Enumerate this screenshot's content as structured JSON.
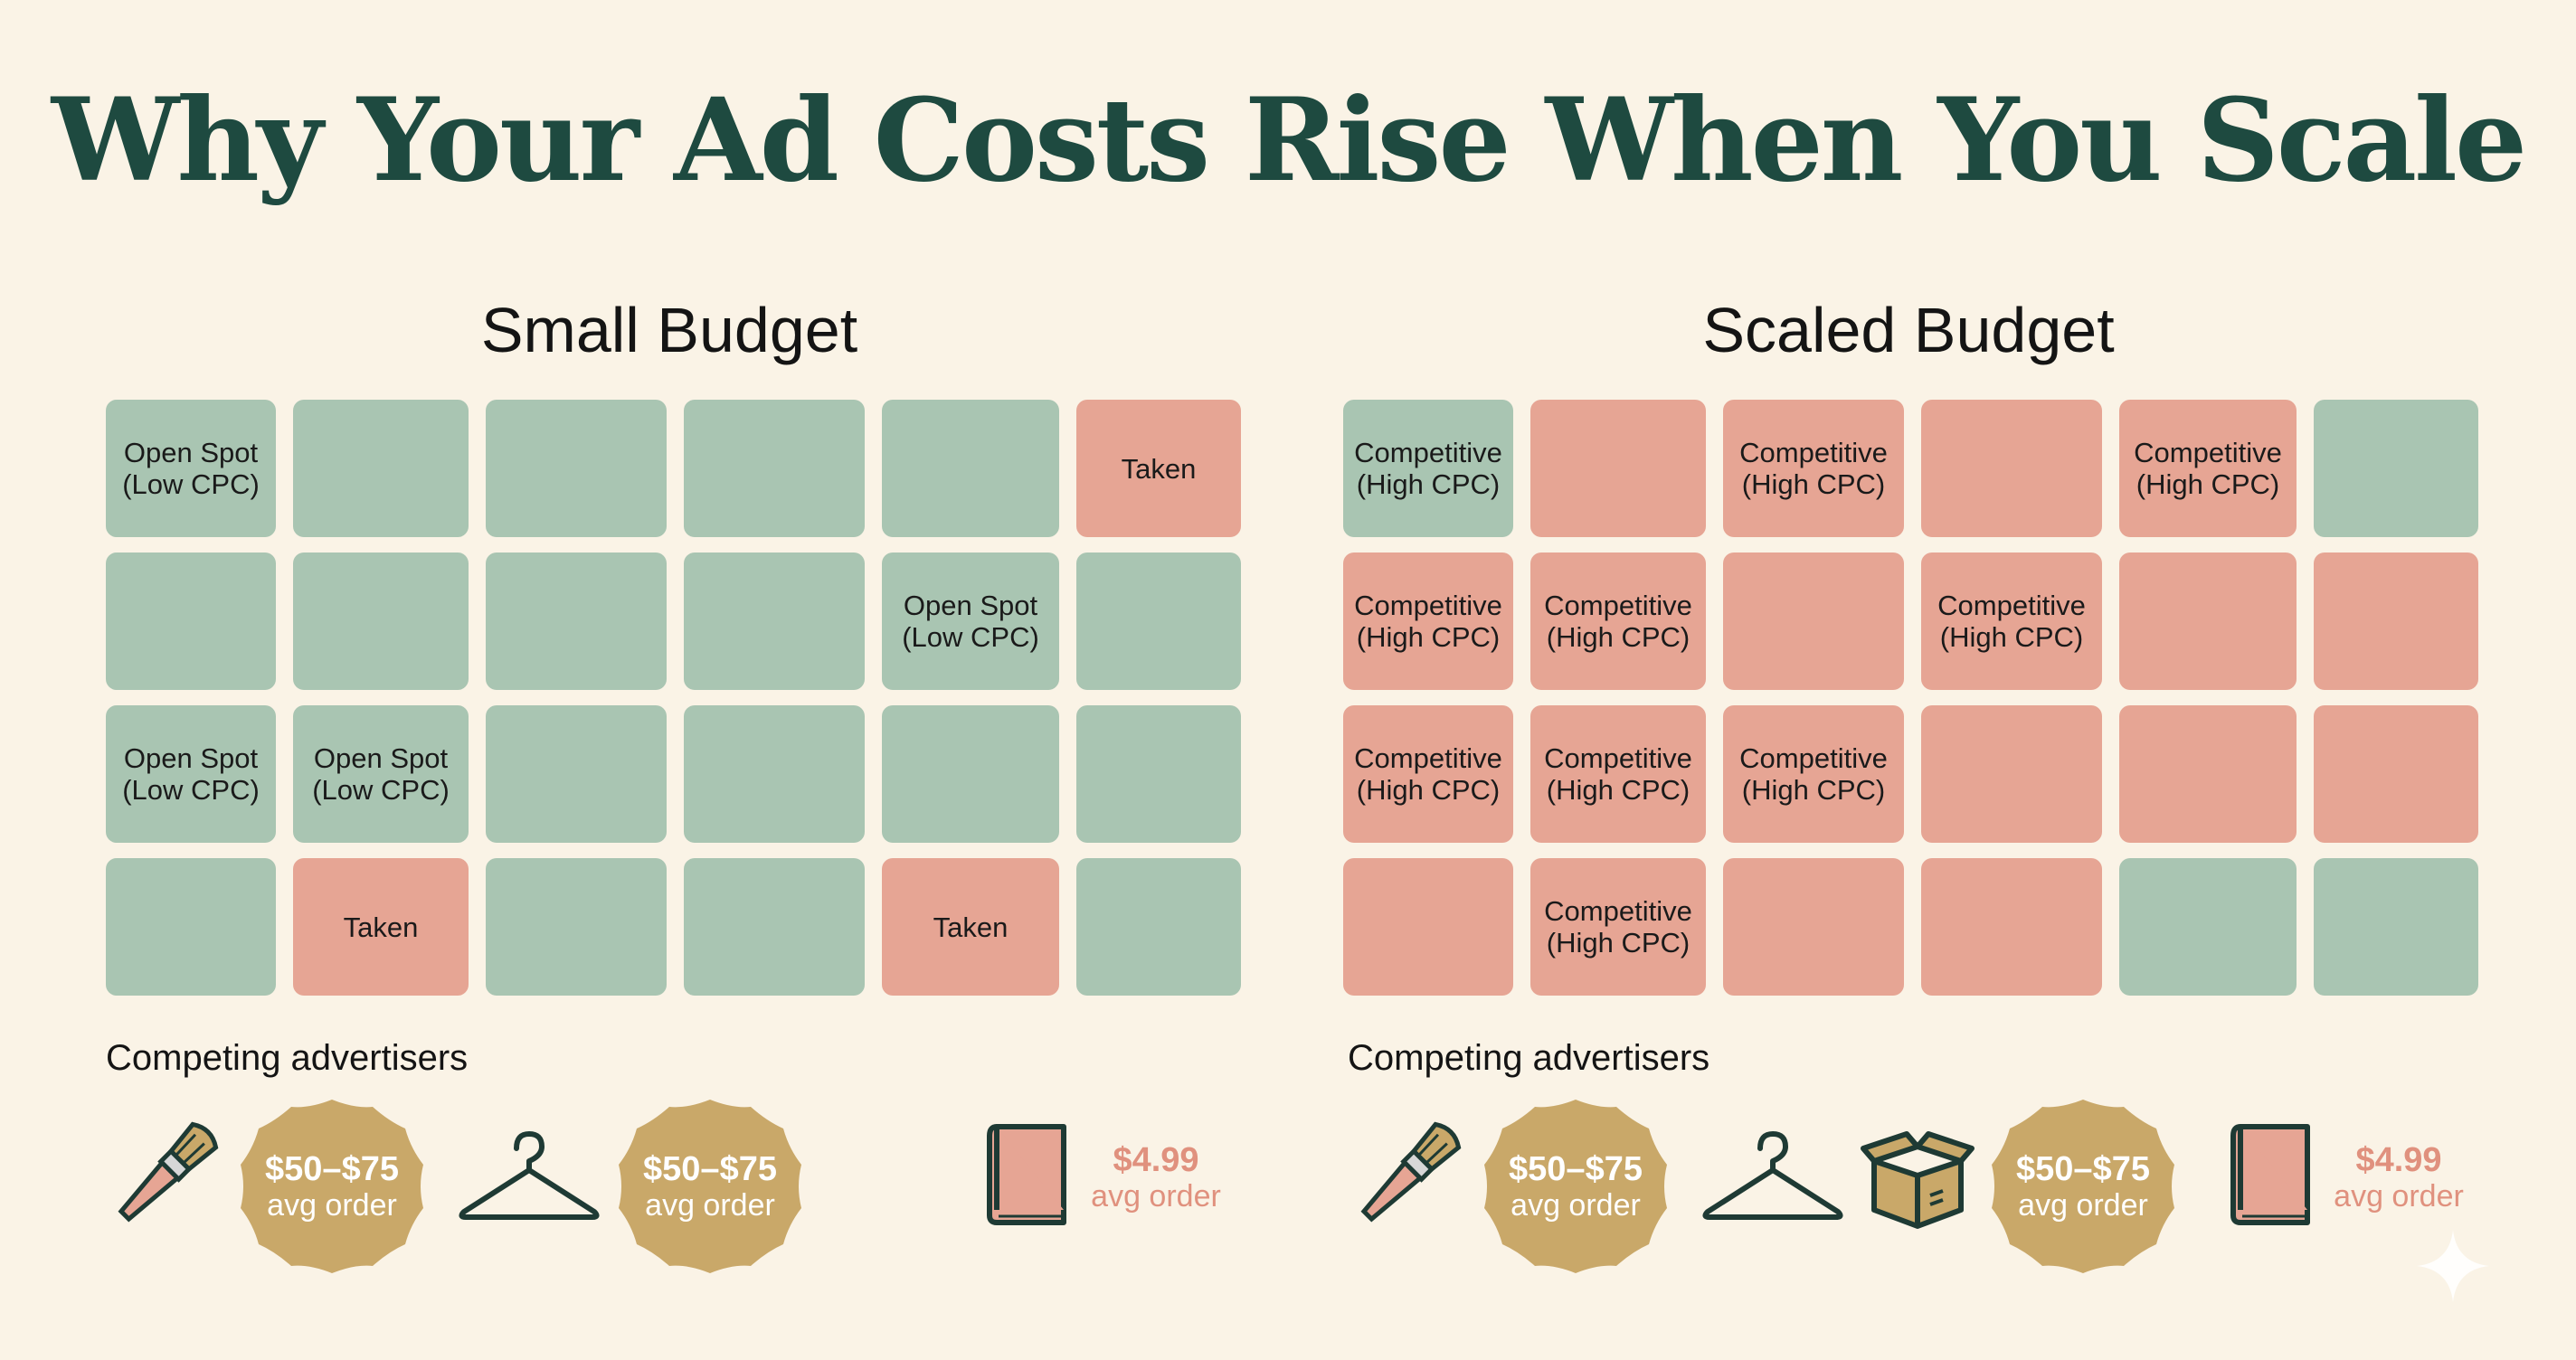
{
  "title": "Why Your Ad Costs Rise When You Scale",
  "colors": {
    "open": "#a9c5b2",
    "taken": "#e6a594",
    "badge": "#c9a869",
    "cheap_text": "#e0917e",
    "title": "#1e4a40"
  },
  "small_budget": {
    "title": "Small Budget",
    "grid": [
      [
        {
          "state": "open",
          "label": "Open Spot\n(Low CPC)"
        },
        {
          "state": "open",
          "label": ""
        },
        {
          "state": "open",
          "label": ""
        },
        {
          "state": "open",
          "label": ""
        },
        {
          "state": "open",
          "label": ""
        },
        {
          "state": "taken",
          "label": "Taken"
        }
      ],
      [
        {
          "state": "open",
          "label": ""
        },
        {
          "state": "open",
          "label": ""
        },
        {
          "state": "open",
          "label": ""
        },
        {
          "state": "open",
          "label": ""
        },
        {
          "state": "open",
          "label": "Open Spot\n(Low CPC)"
        },
        {
          "state": "open",
          "label": ""
        }
      ],
      [
        {
          "state": "open",
          "label": "Open Spot\n(Low CPC)"
        },
        {
          "state": "open",
          "label": "Open Spot\n(Low CPC)"
        },
        {
          "state": "open",
          "label": ""
        },
        {
          "state": "open",
          "label": ""
        },
        {
          "state": "open",
          "label": ""
        },
        {
          "state": "open",
          "label": ""
        }
      ],
      [
        {
          "state": "open",
          "label": ""
        },
        {
          "state": "taken",
          "label": "Taken"
        },
        {
          "state": "open",
          "label": ""
        },
        {
          "state": "open",
          "label": ""
        },
        {
          "state": "taken",
          "label": "Taken"
        },
        {
          "state": "open",
          "label": ""
        }
      ]
    ],
    "competitors_label": "Competing advertisers",
    "competitors": [
      {
        "icon": "makeup-brush-icon"
      },
      {
        "badge_price": "$50–$75",
        "badge_sub": "avg order"
      },
      {
        "icon": "hanger-icon"
      },
      {
        "badge_price": "$50–$75",
        "badge_sub": "avg order"
      },
      {
        "icon": "book-icon"
      },
      {
        "price": "$4.99",
        "sub": "avg order"
      }
    ]
  },
  "scaled_budget": {
    "title": "Scaled Budget",
    "grid": [
      [
        {
          "state": "open",
          "label": "Competitive\n(High CPC)"
        },
        {
          "state": "taken",
          "label": ""
        },
        {
          "state": "taken",
          "label": "Competitive\n(High CPC)"
        },
        {
          "state": "taken",
          "label": ""
        },
        {
          "state": "taken",
          "label": "Competitive\n(High CPC)"
        },
        {
          "state": "open",
          "label": ""
        }
      ],
      [
        {
          "state": "taken",
          "label": "Competitive\n(High CPC)"
        },
        {
          "state": "taken",
          "label": "Competitive\n(High CPC)"
        },
        {
          "state": "taken",
          "label": ""
        },
        {
          "state": "taken",
          "label": "Competitive\n(High CPC)"
        },
        {
          "state": "taken",
          "label": ""
        },
        {
          "state": "taken",
          "label": ""
        }
      ],
      [
        {
          "state": "taken",
          "label": "Competitive\n(High CPC)"
        },
        {
          "state": "taken",
          "label": "Competitive\n(High CPC)"
        },
        {
          "state": "taken",
          "label": "Competitive\n(High CPC)"
        },
        {
          "state": "taken",
          "label": ""
        },
        {
          "state": "taken",
          "label": ""
        },
        {
          "state": "taken",
          "label": ""
        }
      ],
      [
        {
          "state": "taken",
          "label": ""
        },
        {
          "state": "taken",
          "label": "Competitive\n(High CPC)"
        },
        {
          "state": "taken",
          "label": ""
        },
        {
          "state": "taken",
          "label": ""
        },
        {
          "state": "open",
          "label": ""
        },
        {
          "state": "open",
          "label": ""
        }
      ]
    ],
    "competitors_label": "Competing advertisers",
    "competitors": [
      {
        "icon": "makeup-brush-icon"
      },
      {
        "badge_price": "$50–$75",
        "badge_sub": "avg order"
      },
      {
        "icon": "hanger-icon"
      },
      {
        "icon": "box-icon"
      },
      {
        "badge_price": "$50–$75",
        "badge_sub": "avg order"
      },
      {
        "icon": "book-icon"
      },
      {
        "price": "$4.99",
        "sub": "avg order"
      }
    ]
  }
}
